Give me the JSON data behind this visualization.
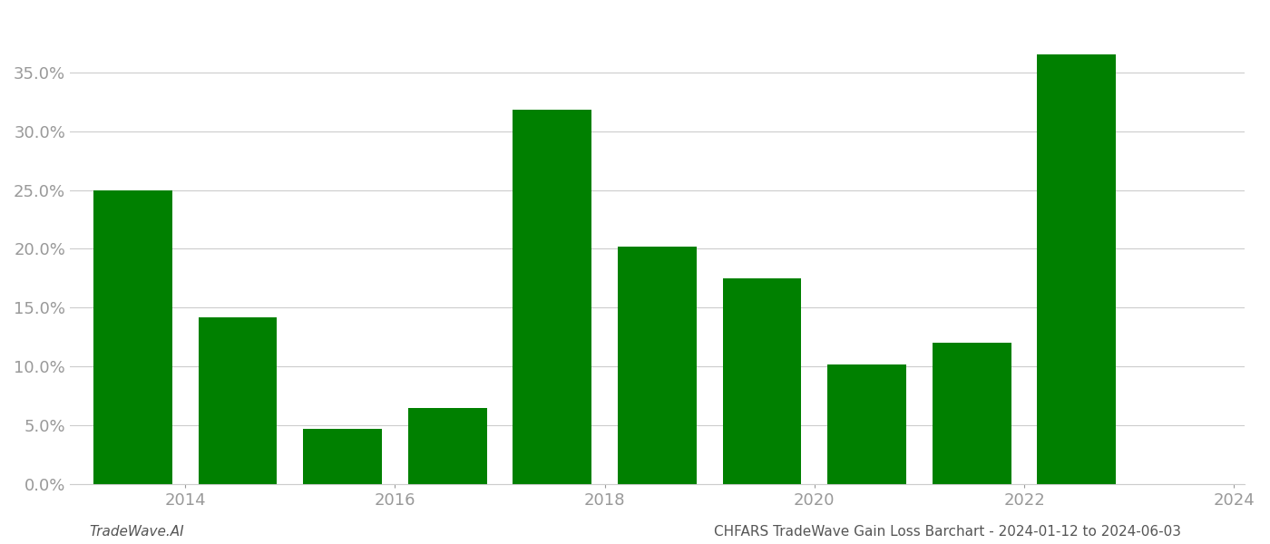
{
  "bar_positions": [
    2013.5,
    2014.5,
    2015.5,
    2016.5,
    2017.5,
    2018.5,
    2019.5,
    2020.5,
    2021.5,
    2022.5
  ],
  "values": [
    0.25,
    0.142,
    0.047,
    0.065,
    0.318,
    0.202,
    0.175,
    0.102,
    0.12,
    0.365
  ],
  "bar_color": "#008000",
  "background_color": "#ffffff",
  "grid_color": "#cccccc",
  "xtick_labels": [
    "2014",
    "2016",
    "2018",
    "2020",
    "2022",
    "2024"
  ],
  "xtick_positions": [
    2014,
    2016,
    2018,
    2020,
    2022,
    2024
  ],
  "ytick_values": [
    0.0,
    0.05,
    0.1,
    0.15,
    0.2,
    0.25,
    0.3,
    0.35
  ],
  "ytick_labels": [
    "0.0%",
    "5.0%",
    "10.0%",
    "15.0%",
    "20.0%",
    "25.0%",
    "30.0%",
    "35.0%"
  ],
  "ylim": [
    0,
    0.4
  ],
  "xlim": [
    2012.9,
    2024.1
  ],
  "bar_width": 0.75,
  "footer_left": "TradeWave.AI",
  "footer_right": "CHFARS TradeWave Gain Loss Barchart - 2024-01-12 to 2024-06-03",
  "tick_color": "#999999",
  "tick_fontsize": 13,
  "footer_fontsize": 11,
  "footer_left_color": "#555555",
  "footer_right_color": "#555555"
}
